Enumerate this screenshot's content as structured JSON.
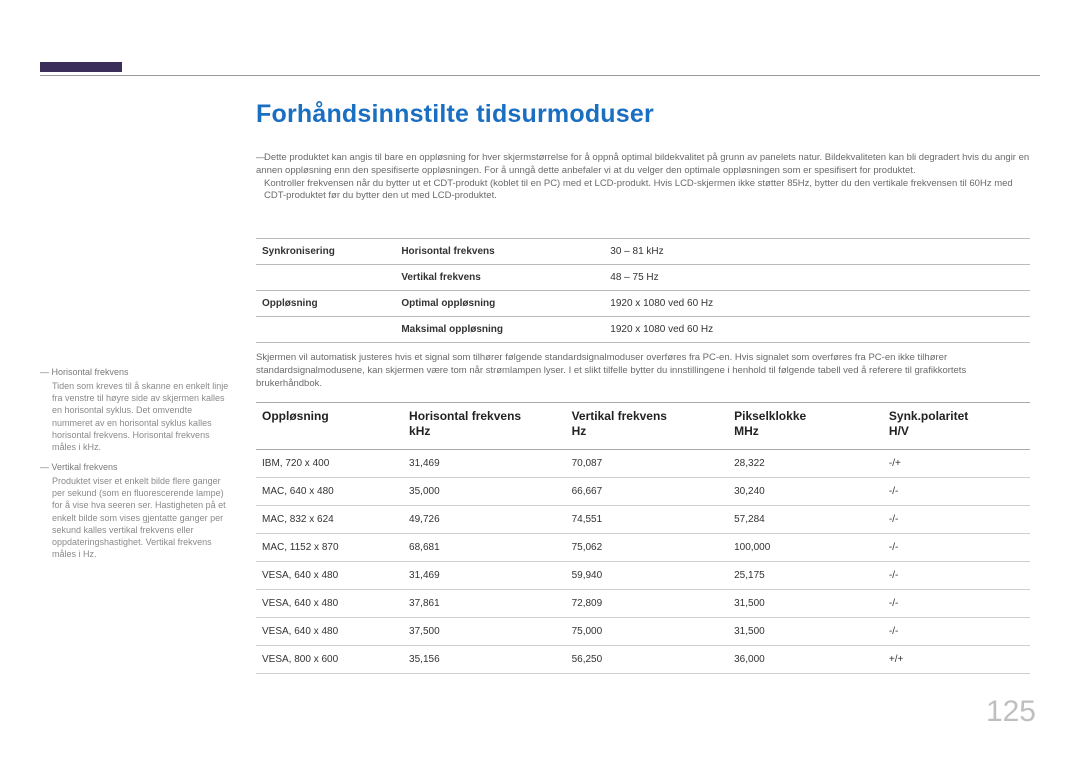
{
  "pageTitle": "Forhåndsinnstilte tidsurmoduser",
  "pageNumber": "125",
  "notes": {
    "dash": "―",
    "p1": "Dette produktet kan angis til bare en oppløsning for hver skjermstørrelse for å oppnå optimal bildekvalitet på grunn av panelets natur. Bildekvaliteten kan bli degradert hvis du angir en annen oppløsning enn den spesifiserte oppløsningen. For å unngå dette anbefaler vi at du velger den optimale oppløsningen som er spesifisert for produktet.",
    "p2": "Kontroller frekvensen når du bytter ut et CDT-produkt (koblet til en PC) med et LCD-produkt. Hvis LCD-skjermen ikke støtter 85Hz, bytter du den vertikale frekvensen til 60Hz med CDT-produktet før du bytter den ut med LCD-produktet."
  },
  "table1": {
    "rows": [
      {
        "c1": "Synkronisering",
        "c2": "Horisontal frekvens",
        "c3": "30 – 81 kHz"
      },
      {
        "c1": "",
        "c2": "Vertikal frekvens",
        "c3": "48 – 75 Hz"
      },
      {
        "c1": "Oppløsning",
        "c2": "Optimal oppløsning",
        "c3": "1920 x 1080 ved 60 Hz"
      },
      {
        "c1": "",
        "c2": "Maksimal oppløsning",
        "c3": "1920 x 1080 ved 60 Hz"
      }
    ]
  },
  "midtext": "Skjermen vil automatisk justeres hvis et signal som tilhører følgende standardsignalmoduser overføres fra PC-en. Hvis signalet som overføres fra PC-en ikke tilhører standardsignalmodusene, kan skjermen være tom når strømlampen lyser. I et slikt tilfelle bytter du innstillingene i henhold til følgende tabell ved å referere til grafikkortets brukerhåndbok.",
  "sidebar": {
    "items": [
      {
        "title": "― Horisontal frekvens",
        "body": "Tiden som kreves til å skanne en enkelt linje fra venstre til høyre side av skjermen kalles en horisontal syklus. Det omvendte nummeret av en horisontal syklus kalles horisontal frekvens. Horisontal frekvens måles i kHz."
      },
      {
        "title": "― Vertikal frekvens",
        "body": "Produktet viser et enkelt bilde flere ganger per sekund (som en fluorescerende lampe) for å vise hva seeren ser. Hastigheten på et enkelt bilde som vises gjentatte ganger per sekund kalles vertikal frekvens eller oppdateringshastighet. Vertikal frekvens måles i Hz."
      }
    ]
  },
  "table2": {
    "headers": [
      "Oppløsning",
      "Horisontal frekvens\nkHz",
      "Vertikal frekvens\nHz",
      "Pikselklokke\nMHz",
      "Synk.polaritet\nH/V"
    ],
    "rows": [
      [
        "IBM, 720 x 400",
        "31,469",
        "70,087",
        "28,322",
        "-/+"
      ],
      [
        "MAC, 640 x 480",
        "35,000",
        "66,667",
        "30,240",
        "-/-"
      ],
      [
        "MAC, 832 x 624",
        "49,726",
        "74,551",
        "57,284",
        "-/-"
      ],
      [
        "MAC, 1152 x 870",
        "68,681",
        "75,062",
        "100,000",
        "-/-"
      ],
      [
        "VESA, 640 x 480",
        "31,469",
        "59,940",
        "25,175",
        "-/-"
      ],
      [
        "VESA, 640 x 480",
        "37,861",
        "72,809",
        "31,500",
        "-/-"
      ],
      [
        "VESA, 640 x 480",
        "37,500",
        "75,000",
        "31,500",
        "-/-"
      ],
      [
        "VESA, 800 x 600",
        "35,156",
        "56,250",
        "36,000",
        "+/+"
      ]
    ]
  }
}
